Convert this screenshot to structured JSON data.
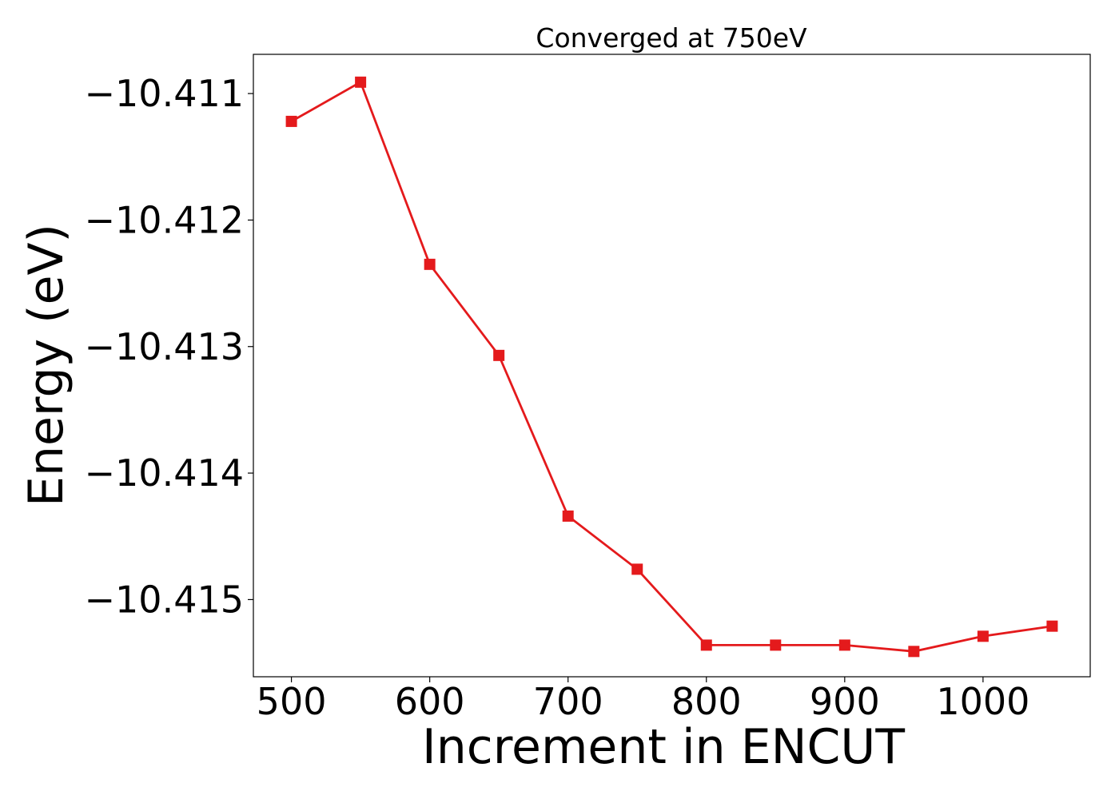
{
  "chart_data": {
    "type": "line",
    "title": "Converged at 750eV",
    "xlabel": "Increment in ENCUT",
    "ylabel": "Energy (eV)",
    "xlim": [
      472.5,
      1077.5
    ],
    "ylim": [
      -10.41561,
      -10.41069
    ],
    "xticks": [
      500,
      600,
      700,
      800,
      900,
      1000
    ],
    "xtick_labels": [
      "500",
      "600",
      "700",
      "800",
      "900",
      "1000"
    ],
    "yticks": [
      -10.411,
      -10.412,
      -10.413,
      -10.414,
      -10.415
    ],
    "ytick_labels": [
      "−10.411",
      "−10.412",
      "−10.413",
      "−10.414",
      "−10.415"
    ],
    "grid": false,
    "series": [
      {
        "color": "#e41a1c",
        "marker": "square",
        "x": [
          500,
          550,
          600,
          650,
          700,
          750,
          800,
          850,
          900,
          950,
          1000,
          1050
        ],
        "y": [
          -10.41122,
          -10.41091,
          -10.41235,
          -10.41307,
          -10.41434,
          -10.41476,
          -10.41536,
          -10.41536,
          -10.41536,
          -10.41541,
          -10.41529,
          -10.41521
        ]
      }
    ]
  }
}
